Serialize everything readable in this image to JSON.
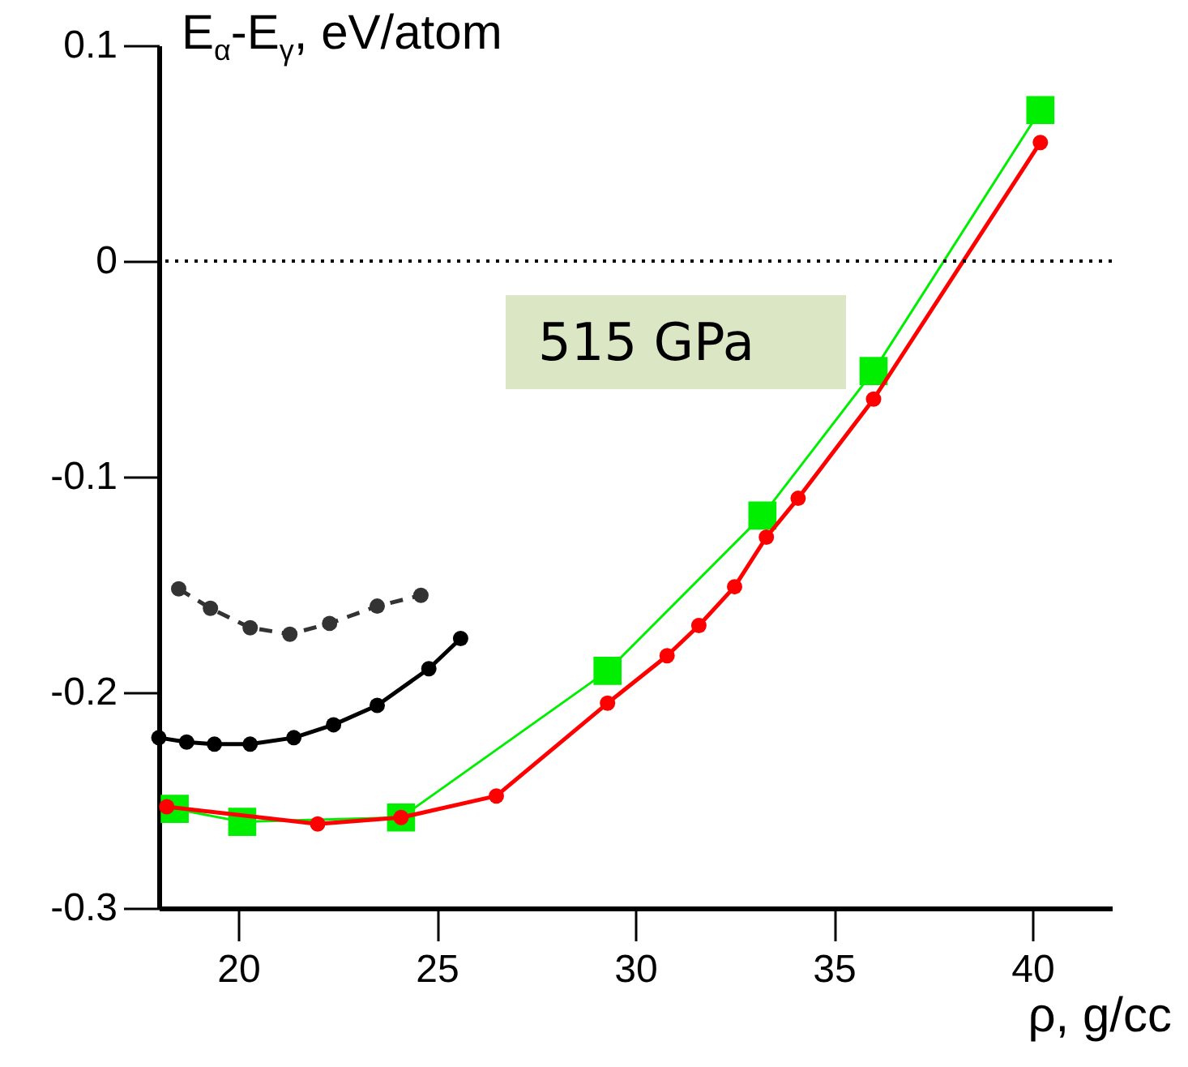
{
  "chart_data": {
    "type": "line",
    "xlabel": "ρ,  g/cc",
    "ylabel": "E$_{α}$-E$_{γ}$,  eV/atom",
    "xlim": [
      18,
      42
    ],
    "ylim": [
      -0.3,
      0.1
    ],
    "xticks": [
      20,
      25,
      30,
      35,
      40
    ],
    "yticks": [
      0.1,
      0,
      -0.1,
      -0.2,
      -0.3
    ],
    "grid": false,
    "annotations": [
      "515 GPa"
    ],
    "ref_lines": [
      {
        "axis": "y",
        "value": 0,
        "line_style": "dotted",
        "color": "#000000"
      }
    ],
    "series": [
      {
        "color": "#ff0000",
        "marker": "circle",
        "line_style": "solid",
        "x": [
          18.2,
          22.0,
          24.1,
          26.5,
          29.3,
          30.8,
          31.6,
          32.5,
          33.3,
          34.1,
          36.0,
          40.2
        ],
        "values": [
          -0.253,
          -0.261,
          -0.258,
          -0.248,
          -0.205,
          -0.183,
          -0.169,
          -0.151,
          -0.128,
          -0.11,
          -0.064,
          0.055
        ]
      },
      {
        "color": "#00ee00",
        "marker": "square",
        "line_style": "solid",
        "x": [
          18.4,
          20.1,
          24.1,
          29.3,
          33.2,
          36.0,
          40.2
        ],
        "values": [
          -0.254,
          -0.26,
          -0.258,
          -0.19,
          -0.118,
          -0.051,
          0.07
        ]
      },
      {
        "color": "#000000",
        "marker": "circle",
        "line_style": "solid",
        "x": [
          18.0,
          18.7,
          19.4,
          20.3,
          21.4,
          22.4,
          23.5,
          24.8,
          25.6
        ],
        "values": [
          -0.221,
          -0.223,
          -0.224,
          -0.224,
          -0.221,
          -0.215,
          -0.206,
          -0.189,
          -0.175
        ]
      },
      {
        "color": "#333333",
        "marker": "circle",
        "line_style": "dashed",
        "x": [
          18.5,
          19.3,
          20.3,
          21.3,
          22.3,
          23.5,
          24.6
        ],
        "values": [
          -0.152,
          -0.161,
          -0.17,
          -0.173,
          -0.168,
          -0.16,
          -0.155
        ]
      }
    ]
  }
}
